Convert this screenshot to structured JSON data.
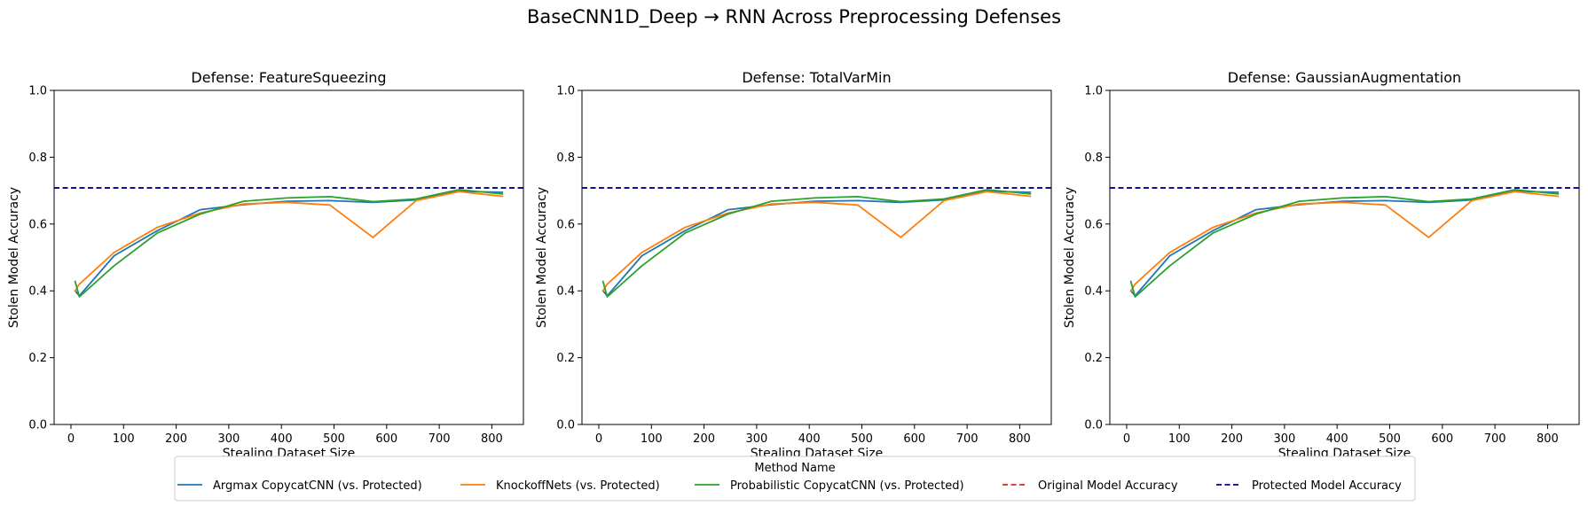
{
  "figure": {
    "suptitle": "BaseCNN1D_Deep → RNN Across Preprocessing Defenses"
  },
  "legend": {
    "title": "Method Name",
    "placement": "bottom-center",
    "entries": [
      {
        "label": "Argmax CopycatCNN (vs. Protected)",
        "color": "#1f77b4",
        "style": "solid"
      },
      {
        "label": "KnockoffNets (vs. Protected)",
        "color": "#ff7f0e",
        "style": "solid"
      },
      {
        "label": "Probabilistic CopycatCNN (vs. Protected)",
        "color": "#2ca02c",
        "style": "solid"
      },
      {
        "label": "Original Model Accuracy",
        "color": "#d62728",
        "style": "dashed"
      },
      {
        "label": "Protected Model Accuracy",
        "color": "#00008b",
        "style": "dashed"
      }
    ]
  },
  "chart_data": [
    {
      "type": "line",
      "title": "Defense: FeatureSqueezing",
      "xlabel": "Stealing Dataset Size",
      "ylabel": "Stolen Model Accuracy",
      "xlim": [
        -32,
        860
      ],
      "ylim": [
        0,
        1
      ],
      "xticks": [
        0,
        100,
        200,
        300,
        400,
        500,
        600,
        700,
        800
      ],
      "yticks": [
        0.0,
        0.2,
        0.4,
        0.6,
        0.8,
        1.0
      ],
      "grid": false,
      "hlines": [
        {
          "name": "Protected Model Accuracy",
          "y": 0.708,
          "color": "#00008b",
          "style": "dashed"
        }
      ],
      "series": [
        {
          "name": "Argmax CopycatCNN (vs. Protected)",
          "color": "#1f77b4",
          "x": [
            8,
            16,
            82,
            164,
            246,
            328,
            410,
            492,
            574,
            656,
            738,
            820
          ],
          "y": [
            0.4,
            0.385,
            0.505,
            0.58,
            0.643,
            0.658,
            0.668,
            0.67,
            0.665,
            0.672,
            0.698,
            0.695
          ]
        },
        {
          "name": "KnockoffNets (vs. Protected)",
          "color": "#ff7f0e",
          "x": [
            8,
            16,
            82,
            164,
            246,
            328,
            410,
            492,
            574,
            656,
            738,
            820
          ],
          "y": [
            0.4,
            0.42,
            0.515,
            0.59,
            0.633,
            0.66,
            0.665,
            0.657,
            0.56,
            0.67,
            0.697,
            0.683
          ]
        },
        {
          "name": "Probabilistic CopycatCNN (vs. Protected)",
          "color": "#2ca02c",
          "x": [
            8,
            16,
            82,
            164,
            246,
            328,
            410,
            492,
            574,
            656,
            738,
            820
          ],
          "y": [
            0.428,
            0.382,
            0.475,
            0.573,
            0.63,
            0.668,
            0.678,
            0.682,
            0.667,
            0.675,
            0.703,
            0.69
          ]
        }
      ]
    },
    {
      "type": "line",
      "title": "Defense: TotalVarMin",
      "xlabel": "Stealing Dataset Size",
      "ylabel": "Stolen Model Accuracy",
      "xlim": [
        -32,
        860
      ],
      "ylim": [
        0,
        1
      ],
      "xticks": [
        0,
        100,
        200,
        300,
        400,
        500,
        600,
        700,
        800
      ],
      "yticks": [
        0.0,
        0.2,
        0.4,
        0.6,
        0.8,
        1.0
      ],
      "grid": false,
      "hlines": [
        {
          "name": "Protected Model Accuracy",
          "y": 0.708,
          "color": "#00008b",
          "style": "dashed"
        }
      ],
      "series": [
        {
          "name": "Argmax CopycatCNN (vs. Protected)",
          "color": "#1f77b4",
          "x": [
            8,
            16,
            82,
            164,
            246,
            328,
            410,
            492,
            574,
            656,
            738,
            820
          ],
          "y": [
            0.4,
            0.385,
            0.505,
            0.58,
            0.643,
            0.658,
            0.668,
            0.67,
            0.665,
            0.672,
            0.698,
            0.695
          ]
        },
        {
          "name": "KnockoffNets (vs. Protected)",
          "color": "#ff7f0e",
          "x": [
            8,
            16,
            82,
            164,
            246,
            328,
            410,
            492,
            574,
            656,
            738,
            820
          ],
          "y": [
            0.4,
            0.42,
            0.515,
            0.59,
            0.633,
            0.66,
            0.665,
            0.657,
            0.56,
            0.67,
            0.697,
            0.683
          ]
        },
        {
          "name": "Probabilistic CopycatCNN (vs. Protected)",
          "color": "#2ca02c",
          "x": [
            8,
            16,
            82,
            164,
            246,
            328,
            410,
            492,
            574,
            656,
            738,
            820
          ],
          "y": [
            0.428,
            0.382,
            0.475,
            0.573,
            0.63,
            0.668,
            0.678,
            0.682,
            0.667,
            0.675,
            0.703,
            0.69
          ]
        }
      ]
    },
    {
      "type": "line",
      "title": "Defense: GaussianAugmentation",
      "xlabel": "Stealing Dataset Size",
      "ylabel": "Stolen Model Accuracy",
      "xlim": [
        -32,
        860
      ],
      "ylim": [
        0,
        1
      ],
      "xticks": [
        0,
        100,
        200,
        300,
        400,
        500,
        600,
        700,
        800
      ],
      "yticks": [
        0.0,
        0.2,
        0.4,
        0.6,
        0.8,
        1.0
      ],
      "grid": false,
      "hlines": [
        {
          "name": "Protected Model Accuracy",
          "y": 0.708,
          "color": "#00008b",
          "style": "dashed"
        }
      ],
      "series": [
        {
          "name": "Argmax CopycatCNN (vs. Protected)",
          "color": "#1f77b4",
          "x": [
            8,
            16,
            82,
            164,
            246,
            328,
            410,
            492,
            574,
            656,
            738,
            820
          ],
          "y": [
            0.4,
            0.385,
            0.505,
            0.58,
            0.643,
            0.658,
            0.668,
            0.67,
            0.665,
            0.672,
            0.698,
            0.695
          ]
        },
        {
          "name": "KnockoffNets (vs. Protected)",
          "color": "#ff7f0e",
          "x": [
            8,
            16,
            82,
            164,
            246,
            328,
            410,
            492,
            574,
            656,
            738,
            820
          ],
          "y": [
            0.4,
            0.42,
            0.515,
            0.59,
            0.633,
            0.66,
            0.665,
            0.657,
            0.56,
            0.67,
            0.697,
            0.683
          ]
        },
        {
          "name": "Probabilistic CopycatCNN (vs. Protected)",
          "color": "#2ca02c",
          "x": [
            8,
            16,
            82,
            164,
            246,
            328,
            410,
            492,
            574,
            656,
            738,
            820
          ],
          "y": [
            0.428,
            0.382,
            0.475,
            0.573,
            0.63,
            0.668,
            0.678,
            0.682,
            0.667,
            0.675,
            0.703,
            0.69
          ]
        }
      ]
    }
  ]
}
